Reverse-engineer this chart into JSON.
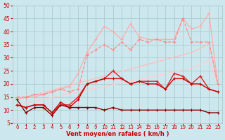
{
  "bg_color": "#cce8ee",
  "grid_color": "#aacccc",
  "xlabel": "Vent moyen/en rafales ( km/h )",
  "xlabel_color": "#cc0000",
  "tick_color": "#cc0000",
  "xlim": [
    -0.5,
    23.5
  ],
  "ylim": [
    5,
    50
  ],
  "yticks": [
    5,
    10,
    15,
    20,
    25,
    30,
    35,
    40,
    45,
    50
  ],
  "xticks": [
    0,
    1,
    2,
    3,
    4,
    5,
    6,
    7,
    8,
    9,
    10,
    11,
    12,
    13,
    14,
    15,
    16,
    17,
    18,
    19,
    20,
    21,
    22,
    23
  ],
  "series": [
    {
      "comment": "straight light pink diagonal line - linear from 14 to 36 then drop",
      "x": [
        0,
        1,
        2,
        3,
        4,
        5,
        6,
        7,
        8,
        9,
        10,
        11,
        12,
        13,
        14,
        15,
        16,
        17,
        18,
        19,
        20,
        21,
        22,
        23
      ],
      "y": [
        14,
        14.9,
        15.8,
        16.7,
        17.6,
        18.5,
        19.4,
        20.3,
        21.2,
        22.1,
        23,
        23.9,
        24.8,
        25.7,
        26.6,
        27.5,
        28.4,
        29.3,
        30.2,
        31.1,
        32,
        33.5,
        35.5,
        20
      ],
      "color": "#ffbbbb",
      "lw": 0.9,
      "marker": null,
      "ms": 0,
      "style": "-"
    },
    {
      "comment": "another straight light pink diagonal - slightly lower slope",
      "x": [
        0,
        1,
        2,
        3,
        4,
        5,
        6,
        7,
        8,
        9,
        10,
        11,
        12,
        13,
        14,
        15,
        16,
        17,
        18,
        19,
        20,
        21,
        22,
        23
      ],
      "y": [
        12,
        12.7,
        13.4,
        14.1,
        14.8,
        15.5,
        16.2,
        16.9,
        17.6,
        18.3,
        19,
        19.7,
        20.4,
        21.1,
        21.8,
        22.5,
        23.2,
        23.9,
        24.6,
        25.3,
        26,
        27.5,
        29,
        20
      ],
      "color": "#ffcccc",
      "lw": 0.9,
      "marker": null,
      "ms": 0,
      "style": "-"
    },
    {
      "comment": "light pink dashed line with + markers - high peaks",
      "x": [
        0,
        1,
        2,
        3,
        4,
        5,
        6,
        7,
        8,
        9,
        10,
        11,
        12,
        13,
        14,
        15,
        16,
        17,
        18,
        19,
        20,
        21,
        22,
        23
      ],
      "y": [
        14,
        15,
        15,
        16,
        17,
        18,
        19,
        24,
        32,
        37,
        42,
        40,
        37,
        43,
        38,
        37,
        37,
        37,
        37,
        45,
        41,
        42,
        47,
        20
      ],
      "color": "#ffaaaa",
      "lw": 0.9,
      "marker": "+",
      "ms": 3.5,
      "style": "-"
    },
    {
      "comment": "medium pink line with + markers - moderate rise with bump at x=7-8",
      "x": [
        0,
        1,
        2,
        3,
        4,
        5,
        6,
        7,
        8,
        9,
        10,
        11,
        12,
        13,
        14,
        15,
        16,
        17,
        18,
        19,
        20,
        21,
        22,
        23
      ],
      "y": [
        15,
        15,
        16,
        16,
        17,
        18,
        17,
        18,
        31,
        33,
        35,
        33,
        36,
        33,
        37,
        36,
        37,
        36,
        36,
        45,
        36,
        36,
        36,
        20
      ],
      "color": "#ff8888",
      "lw": 0.9,
      "marker": "+",
      "ms": 3.5,
      "style": "--"
    },
    {
      "comment": "dark red line with + markers - rises to 20-25 range",
      "x": [
        0,
        1,
        2,
        3,
        4,
        5,
        6,
        7,
        8,
        9,
        10,
        11,
        12,
        13,
        14,
        15,
        16,
        17,
        18,
        19,
        20,
        21,
        22,
        23
      ],
      "y": [
        12,
        11,
        12,
        12,
        9,
        12,
        12,
        15,
        20,
        21,
        22,
        25,
        22,
        20,
        21,
        21,
        21,
        18,
        24,
        23,
        20,
        23,
        18,
        17
      ],
      "color": "#dd2222",
      "lw": 1.0,
      "marker": "+",
      "ms": 3.5,
      "style": "-"
    },
    {
      "comment": "dark red second line - slightly above bottom",
      "x": [
        0,
        1,
        2,
        3,
        4,
        5,
        6,
        7,
        8,
        9,
        10,
        11,
        12,
        13,
        14,
        15,
        16,
        17,
        18,
        19,
        20,
        21,
        22,
        23
      ],
      "y": [
        12,
        11,
        12,
        12,
        9,
        13,
        11,
        14,
        20,
        21,
        22,
        22,
        22,
        20,
        21,
        20,
        20,
        18,
        22,
        22,
        20,
        20,
        18,
        17
      ],
      "color": "#cc0000",
      "lw": 1.0,
      "marker": "+",
      "ms": 3.5,
      "style": "-"
    },
    {
      "comment": "darkest red - flat bottom line around 10-15, dips at x=4",
      "x": [
        0,
        1,
        2,
        3,
        4,
        5,
        6,
        7,
        8,
        9,
        10,
        11,
        12,
        13,
        14,
        15,
        16,
        17,
        18,
        19,
        20,
        21,
        22,
        23
      ],
      "y": [
        14,
        9,
        11,
        11,
        8,
        12,
        11,
        11,
        11,
        11,
        10,
        11,
        10,
        10,
        10,
        10,
        10,
        10,
        10,
        10,
        10,
        10,
        9,
        9
      ],
      "color": "#880000",
      "lw": 1.0,
      "marker": "+",
      "ms": 3.5,
      "style": "-"
    }
  ]
}
